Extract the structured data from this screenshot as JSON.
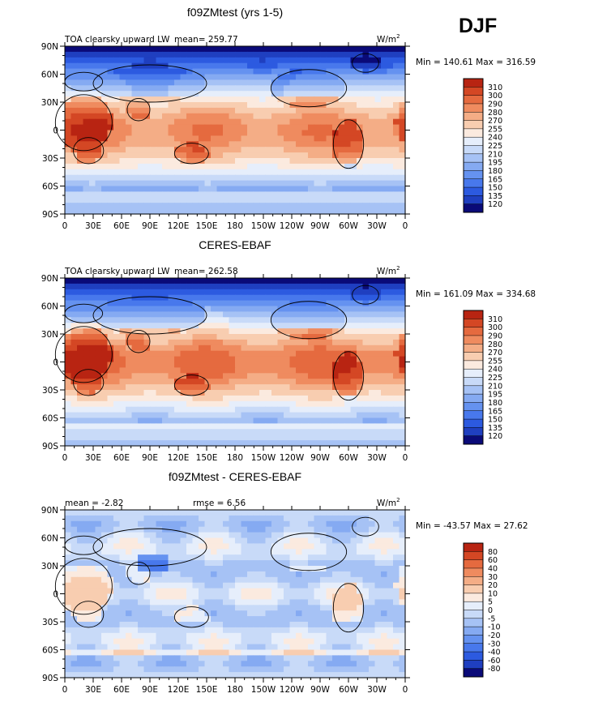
{
  "season": "DJF",
  "chart_data": [
    {
      "type": "heatmap",
      "title": "f09ZMtest (yrs 1-5)",
      "left_label": "TOA clearsky upward LW",
      "stat_text": "mean= 259.77",
      "units": "W/m",
      "units_exp": "2",
      "minmax": "Min = 140.61 Max = 316.59",
      "colorbar_levels": [
        "310",
        "300",
        "290",
        "280",
        "270",
        "255",
        "240",
        "225",
        "210",
        "195",
        "180",
        "165",
        "150",
        "135",
        "120"
      ],
      "mode": "abs",
      "bias": 0
    },
    {
      "type": "heatmap",
      "title": "CERES-EBAF",
      "left_label": "TOA clearsky upward LW",
      "stat_text": "mean= 262.58",
      "units": "W/m",
      "units_exp": "2",
      "minmax": "Min = 161.09 Max = 334.68",
      "colorbar_levels": [
        "310",
        "300",
        "290",
        "280",
        "270",
        "255",
        "240",
        "225",
        "210",
        "195",
        "180",
        "165",
        "150",
        "135",
        "120"
      ],
      "mode": "abs",
      "bias": 6
    },
    {
      "type": "heatmap",
      "title": "f09ZMtest - CERES-EBAF",
      "left_label": "mean =    -2.82",
      "stat_text": "rmse =     6.56",
      "units": "W/m",
      "units_exp": "2",
      "minmax": "Min = -43.57 Max =  27.62",
      "colorbar_levels": [
        "80",
        "60",
        "40",
        "30",
        "20",
        "10",
        "5",
        "0",
        "-5",
        "-10",
        "-20",
        "-30",
        "-40",
        "-60",
        "-80"
      ],
      "mode": "diff",
      "bias": 0
    }
  ],
  "axes": {
    "x_ticks": [
      "0",
      "30E",
      "60E",
      "90E",
      "120E",
      "150E",
      "180",
      "150W",
      "120W",
      "90W",
      "60W",
      "30W",
      "0"
    ],
    "y_ticks": [
      "90N",
      "60N",
      "30N",
      "0",
      "30S",
      "60S",
      "90S"
    ]
  },
  "colors": {
    "ramp16": [
      "#0a0a78",
      "#1f3fc0",
      "#2c5ae0",
      "#4878ec",
      "#6592f0",
      "#85aaf2",
      "#a6c2f5",
      "#c8daf8",
      "#e6eefb",
      "#fbeadf",
      "#f8cdb0",
      "#f4ad86",
      "#ef8b5f",
      "#e56a3f",
      "#d44724",
      "#b82412"
    ]
  }
}
